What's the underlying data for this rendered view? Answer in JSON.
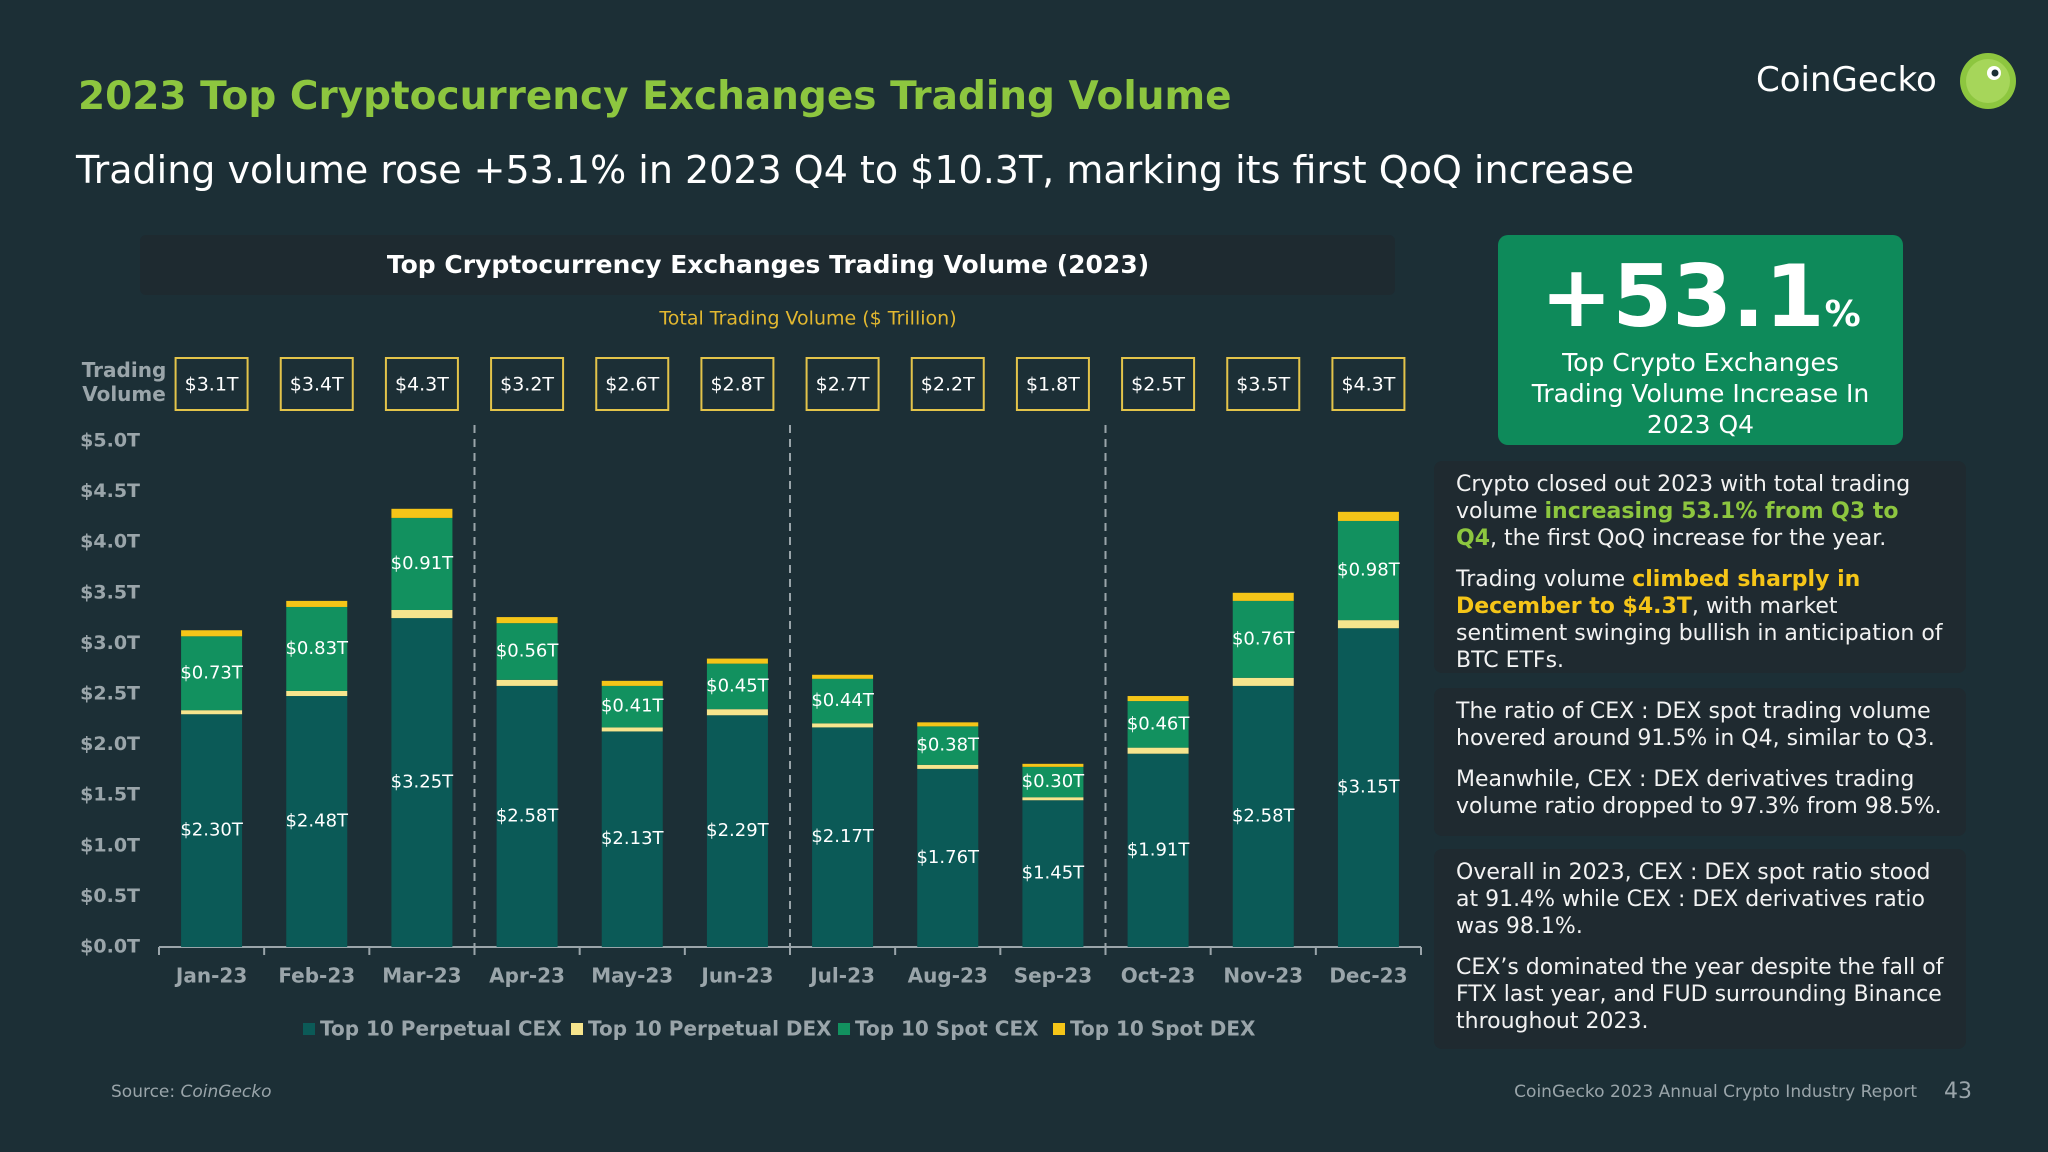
{
  "header": {
    "title": "2023 Top Cryptocurrency Exchanges Trading Volume",
    "subtitle": "Trading volume rose +53.1% in 2023 Q4 to $10.3T, marking its first QoQ increase",
    "logo": "CoinGecko"
  },
  "chart_data": {
    "type": "stacked_bar",
    "title": "Top Cryptocurrency Exchanges Trading Volume (2023)",
    "subtitle": "Total Trading Volume ($ Trillion)",
    "y_axis_title": "Trading Volume",
    "categories": [
      "Jan-23",
      "Feb-23",
      "Mar-23",
      "Apr-23",
      "May-23",
      "Jun-23",
      "Jul-23",
      "Aug-23",
      "Sep-23",
      "Oct-23",
      "Nov-23",
      "Dec-23"
    ],
    "series": [
      {
        "name": "Top 10 Perpetual CEX",
        "color": "#0b5a57",
        "values": [
          2.3,
          2.48,
          3.25,
          2.58,
          2.13,
          2.29,
          2.17,
          1.76,
          1.45,
          1.91,
          2.58,
          3.15
        ],
        "value_labels": [
          "$2.30T",
          "$2.48T",
          "$3.25T",
          "$2.58T",
          "$2.13T",
          "$2.29T",
          "$2.17T",
          "$1.76T",
          "$1.45T",
          "$1.91T",
          "$2.58T",
          "$3.15T"
        ]
      },
      {
        "name": "Top 10 Perpetual DEX",
        "color": "#f6e58d",
        "values": [
          0.04,
          0.05,
          0.08,
          0.06,
          0.04,
          0.06,
          0.04,
          0.04,
          0.03,
          0.06,
          0.08,
          0.08
        ]
      },
      {
        "name": "Top 10 Spot CEX",
        "color": "#12915f",
        "values": [
          0.73,
          0.83,
          0.91,
          0.56,
          0.41,
          0.45,
          0.44,
          0.38,
          0.3,
          0.46,
          0.76,
          0.98
        ],
        "value_labels": [
          "$0.73T",
          "$0.83T",
          "$0.91T",
          "$0.56T",
          "$0.41T",
          "$0.45T",
          "$0.44T",
          "$0.38T",
          "$0.30T",
          "$0.46T",
          "$0.76T",
          "$0.98T"
        ]
      },
      {
        "name": "Top 10 Spot DEX",
        "color": "#f5c518",
        "values": [
          0.06,
          0.06,
          0.09,
          0.06,
          0.05,
          0.05,
          0.04,
          0.04,
          0.03,
          0.05,
          0.08,
          0.09
        ]
      }
    ],
    "totals": {
      "values": [
        3.1,
        3.4,
        4.3,
        3.2,
        2.6,
        2.8,
        2.7,
        2.2,
        1.8,
        2.5,
        3.5,
        4.3
      ],
      "value_labels": [
        "$3.1T",
        "$3.4T",
        "$4.3T",
        "$3.2T",
        "$2.6T",
        "$2.8T",
        "$2.7T",
        "$2.2T",
        "$1.8T",
        "$2.5T",
        "$3.5T",
        "$4.3T"
      ]
    },
    "ylim": [
      0,
      5
    ],
    "yticks": [
      {
        "value": 0,
        "label": "$0.0T"
      },
      {
        "value": 0.5,
        "label": "$0.5T"
      },
      {
        "value": 1,
        "label": "$1.0T"
      },
      {
        "value": 1.5,
        "label": "$1.5T"
      },
      {
        "value": 2,
        "label": "$2.0T"
      },
      {
        "value": 2.5,
        "label": "$2.5T"
      },
      {
        "value": 3,
        "label": "$3.0T"
      },
      {
        "value": 3.5,
        "label": "$3.5T"
      },
      {
        "value": 4,
        "label": "$4.0T"
      },
      {
        "value": 4.5,
        "label": "$4.5T"
      },
      {
        "value": 5,
        "label": "$5.0T"
      }
    ],
    "grid": false,
    "legend": "bottom"
  },
  "stat": {
    "value": "+53.1",
    "unit": "%",
    "caption": "Top Crypto Exchanges Trading Volume Increase In 2023 Q4"
  },
  "panels": [
    {
      "paragraphs": [
        [
          "Crypto closed out 2023 with total trading volume ",
          {
            "text": "increasing 53.1% from Q3 to Q4",
            "color": "#8dc63f"
          },
          ", the first QoQ increase for the year."
        ],
        [
          "Trading volume ",
          {
            "text": "climbed sharply in December to $4.3T",
            "color": "#f5c518"
          },
          ", with market sentiment swinging bullish in anticipation of BTC ETFs."
        ]
      ]
    },
    {
      "paragraphs": [
        [
          "The ratio of CEX : DEX spot trading volume hovered around 91.5% in Q4, similar to Q3."
        ],
        [
          "Meanwhile, CEX : DEX derivatives trading volume ratio dropped to 97.3% from 98.5%."
        ]
      ]
    },
    {
      "paragraphs": [
        [
          "Overall in 2023, CEX : DEX spot ratio stood at 91.4% while CEX : DEX derivatives ratio was 98.1%."
        ],
        [
          "CEX’s dominated the year despite the fall of FTX last year, and FUD surrounding Binance throughout 2023."
        ]
      ]
    }
  ],
  "footer": {
    "source_label": "Source:",
    "source": "CoinGecko",
    "report": "CoinGecko 2023 Annual Crypto Industry Report",
    "page": "43"
  }
}
